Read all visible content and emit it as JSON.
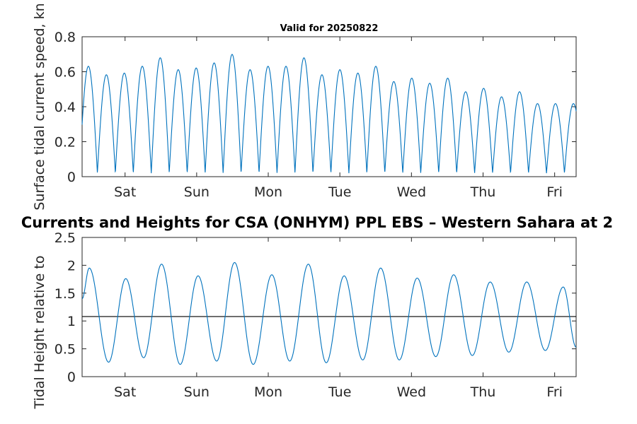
{
  "chart_data": [
    {
      "type": "line",
      "title": "Valid for 20250822",
      "xlabel": "",
      "ylabel": "Surface tidal current speed, kn",
      "ylim": [
        0,
        0.8
      ],
      "y_ticks": [
        "0",
        "0.2",
        "0.4",
        "0.6",
        "0.8"
      ],
      "x_tick_labels": [
        "Sat",
        "Sun",
        "Mon",
        "Tue",
        "Wed",
        "Thu",
        "Fri"
      ],
      "x_day_range": [
        0,
        6.9
      ],
      "x_tick_positions": [
        0.6,
        1.6,
        2.6,
        3.6,
        4.6,
        5.6,
        6.6
      ],
      "grid": false,
      "peak_count": 27,
      "peaks": [
        0.63,
        0.58,
        0.59,
        0.63,
        0.68,
        0.61,
        0.62,
        0.65,
        0.7,
        0.61,
        0.63,
        0.63,
        0.68,
        0.58,
        0.61,
        0.59,
        0.63,
        0.54,
        0.56,
        0.53,
        0.56,
        0.48,
        0.5,
        0.45,
        0.48,
        0.41,
        0.41
      ],
      "series": [
        {
          "color": "#0072bd"
        }
      ]
    },
    {
      "type": "line",
      "title": "Currents and Heights for CSA (ONHYM) PPL EBS  – Western Sahara at 2",
      "xlabel": "",
      "ylabel": "Tidal Height relative to",
      "ylim": [
        0,
        2.5
      ],
      "y_ticks": [
        "0",
        "0.5",
        "1",
        "1.5",
        "2",
        "2.5"
      ],
      "x_tick_labels": [
        "Sat",
        "Sun",
        "Mon",
        "Tue",
        "Wed",
        "Thu",
        "Fri"
      ],
      "x_day_range": [
        0,
        6.9
      ],
      "x_tick_positions": [
        0.6,
        1.6,
        2.6,
        3.6,
        4.6,
        5.6,
        6.6
      ],
      "grid": false,
      "reference_line": 1.08,
      "extrema": [
        [
          0.0,
          1.4
        ],
        [
          0.1,
          1.95
        ],
        [
          0.37,
          0.26
        ],
        [
          0.61,
          1.76
        ],
        [
          0.86,
          0.34
        ],
        [
          1.11,
          2.02
        ],
        [
          1.37,
          0.22
        ],
        [
          1.62,
          1.81
        ],
        [
          1.88,
          0.28
        ],
        [
          2.13,
          2.05
        ],
        [
          2.39,
          0.22
        ],
        [
          2.65,
          1.83
        ],
        [
          2.9,
          0.28
        ],
        [
          3.16,
          2.02
        ],
        [
          3.41,
          0.25
        ],
        [
          3.66,
          1.81
        ],
        [
          3.92,
          0.3
        ],
        [
          4.17,
          1.95
        ],
        [
          4.43,
          0.3
        ],
        [
          4.68,
          1.77
        ],
        [
          4.94,
          0.36
        ],
        [
          5.19,
          1.83
        ],
        [
          5.45,
          0.38
        ],
        [
          5.7,
          1.7
        ],
        [
          5.96,
          0.44
        ],
        [
          6.21,
          1.7
        ],
        [
          6.47,
          0.47
        ],
        [
          6.72,
          1.61
        ],
        [
          6.9,
          0.53
        ]
      ],
      "series": [
        {
          "color": "#0072bd"
        }
      ],
      "reference_color": "#000000"
    }
  ]
}
